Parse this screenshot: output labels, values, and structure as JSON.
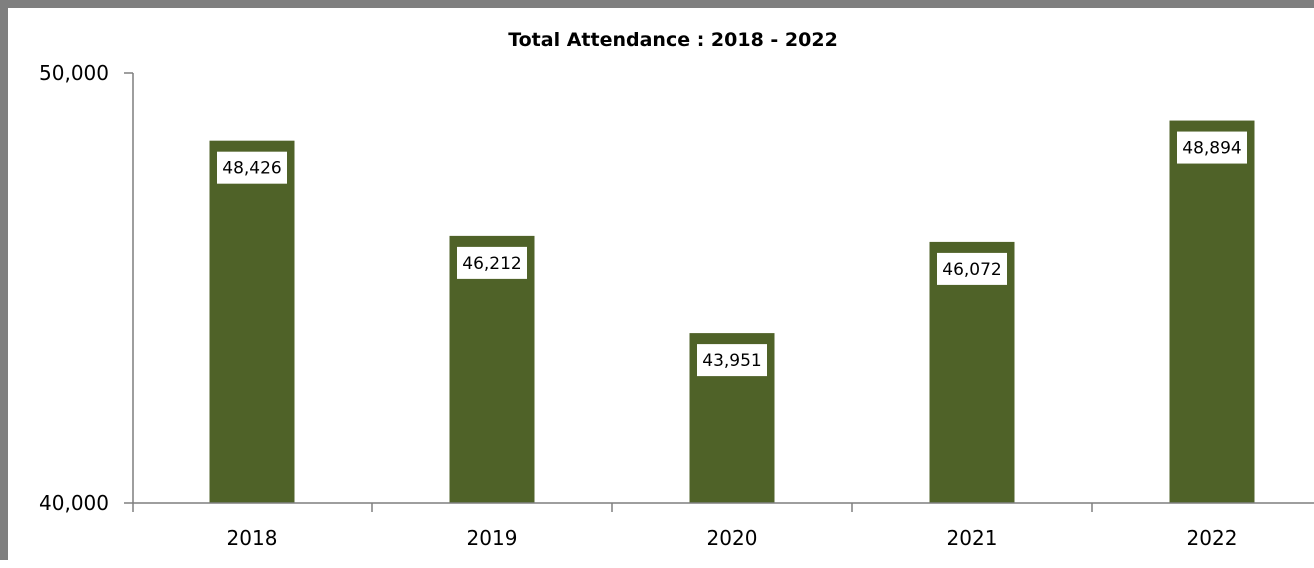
{
  "chart_data": {
    "type": "bar",
    "title": "Total Attendance : 2018 - 2022",
    "xlabel": "",
    "ylabel": "",
    "categories": [
      "2018",
      "2019",
      "2020",
      "2021",
      "2022"
    ],
    "values": [
      48426,
      46212,
      43951,
      46072,
      48894
    ],
    "value_labels": [
      "48,426",
      "46,212",
      "43,951",
      "46,072",
      "48,894"
    ],
    "ylim": [
      40000,
      50000
    ],
    "y_ticks": [
      40000,
      50000
    ],
    "y_tick_labels": [
      "40,000",
      "50,000"
    ],
    "grid": false,
    "legend": "none",
    "colors": {
      "bar": "#4f6228",
      "axis": "#7f7f7f",
      "frame": "#7f7f7f",
      "label_bg": "#ffffff"
    }
  }
}
